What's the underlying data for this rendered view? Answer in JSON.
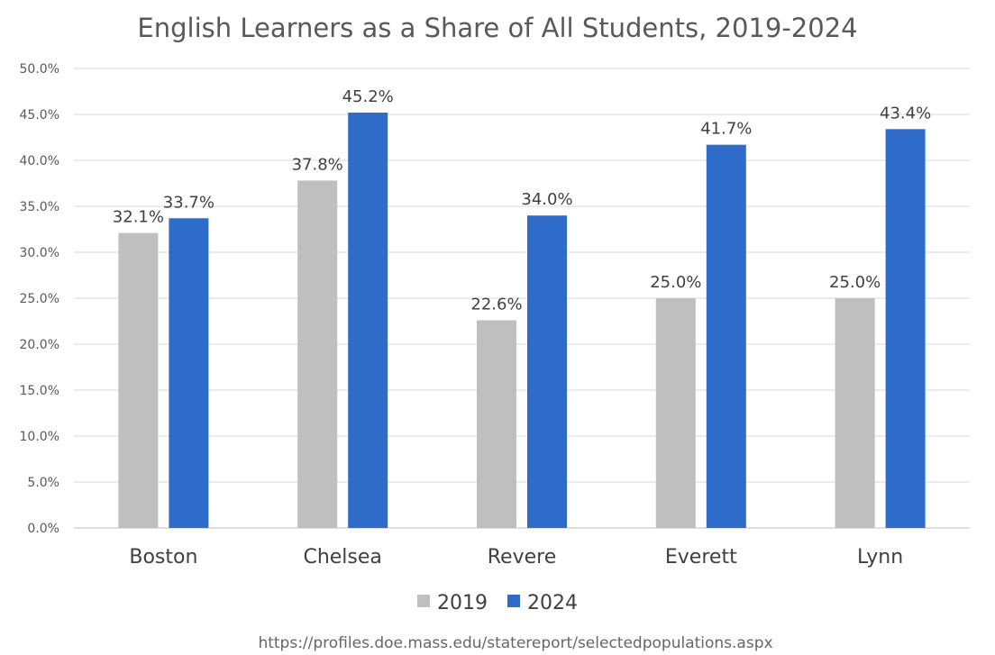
{
  "chart_data": {
    "type": "bar",
    "title": "English Learners as a Share of All Students, 2019-2024",
    "categories": [
      "Boston",
      "Chelsea",
      "Revere",
      "Everett",
      "Lynn"
    ],
    "series": [
      {
        "name": "2019",
        "color": "#bfbfbf",
        "values": [
          32.1,
          37.8,
          22.6,
          25.0,
          25.0
        ]
      },
      {
        "name": "2024",
        "color": "#2f6bc8",
        "values": [
          33.7,
          45.2,
          34.0,
          41.7,
          43.4
        ]
      }
    ],
    "ylim": [
      0,
      50
    ],
    "yticks": [
      "0.0%",
      "5.0%",
      "10.0%",
      "15.0%",
      "20.0%",
      "25.0%",
      "30.0%",
      "35.0%",
      "40.0%",
      "45.0%",
      "50.0%"
    ],
    "data_labels": [
      [
        "32.1%",
        "37.8%",
        "22.6%",
        "25.0%",
        "25.0%"
      ],
      [
        "33.7%",
        "45.2%",
        "34.0%",
        "41.7%",
        "43.4%"
      ]
    ],
    "legend_position": "bottom",
    "grid": true
  },
  "source_note": "https://profiles.doe.mass.edu/statereport/selectedpopulations.aspx"
}
